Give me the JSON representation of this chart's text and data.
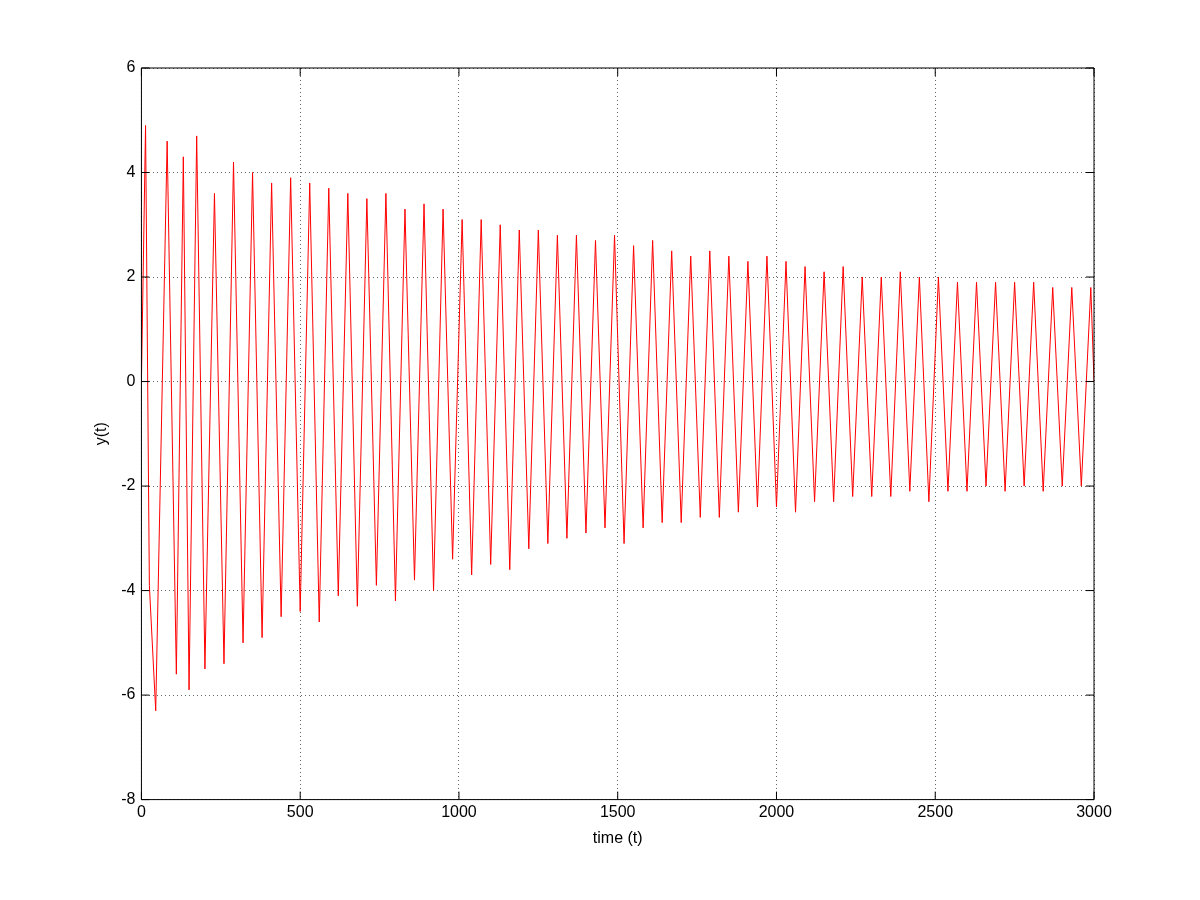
{
  "chart_data": {
    "type": "line",
    "xlabel": "time (t)",
    "ylabel": "y(t)",
    "xlim": [
      0,
      3000
    ],
    "xticks": [
      0,
      500,
      1000,
      1500,
      2000,
      2500,
      3000
    ],
    "ylim": [
      -8,
      6
    ],
    "yticks": [
      -8,
      -6,
      -4,
      -2,
      0,
      2,
      4,
      6
    ],
    "grid": true,
    "marker": "none",
    "line_style": "solid",
    "x": [
      0,
      13,
      25,
      45,
      81,
      110,
      132,
      150,
      174,
      200,
      230,
      260,
      290,
      320,
      350,
      380,
      410,
      440,
      470,
      500,
      530,
      560,
      590,
      620,
      650,
      680,
      710,
      740,
      770,
      800,
      830,
      860,
      890,
      920,
      950,
      980,
      1010,
      1040,
      1070,
      1100,
      1130,
      1160,
      1190,
      1220,
      1250,
      1280,
      1310,
      1340,
      1370,
      1400,
      1430,
      1460,
      1490,
      1520,
      1550,
      1580,
      1610,
      1640,
      1670,
      1700,
      1730,
      1760,
      1790,
      1820,
      1850,
      1880,
      1910,
      1940,
      1970,
      2000,
      2030,
      2060,
      2090,
      2120,
      2150,
      2180,
      2210,
      2240,
      2270,
      2300,
      2330,
      2360,
      2390,
      2420,
      2450,
      2480,
      2510,
      2540,
      2570,
      2600,
      2630,
      2660,
      2690,
      2720,
      2750,
      2780,
      2810,
      2840,
      2870,
      2900,
      2930,
      2960,
      2990,
      3000
    ],
    "series": [
      {
        "color": "#ff0000",
        "values": [
          0,
          4.9,
          -3.9,
          -6.3,
          4.6,
          -5.6,
          4.3,
          -5.9,
          4.7,
          -5.5,
          3.6,
          -5.4,
          4.2,
          -5.0,
          4.0,
          -4.9,
          3.8,
          -4.5,
          3.9,
          -4.4,
          3.8,
          -4.6,
          3.7,
          -4.1,
          3.6,
          -4.3,
          3.5,
          -3.9,
          3.6,
          -4.2,
          3.3,
          -3.8,
          3.4,
          -4.0,
          3.3,
          -3.4,
          3.1,
          -3.7,
          3.1,
          -3.5,
          3.0,
          -3.6,
          2.9,
          -3.2,
          2.9,
          -3.1,
          2.8,
          -3.0,
          2.8,
          -2.9,
          2.7,
          -2.8,
          2.8,
          -3.1,
          2.6,
          -2.8,
          2.7,
          -2.7,
          2.5,
          -2.7,
          2.4,
          -2.6,
          2.5,
          -2.6,
          2.4,
          -2.5,
          2.3,
          -2.4,
          2.4,
          -2.4,
          2.3,
          -2.5,
          2.2,
          -2.3,
          2.1,
          -2.3,
          2.2,
          -2.2,
          2.0,
          -2.2,
          2.0,
          -2.2,
          2.1,
          -2.1,
          2.0,
          -2.3,
          2.0,
          -2.1,
          1.9,
          -2.1,
          1.9,
          -2.0,
          1.9,
          -2.1,
          1.9,
          -2.0,
          1.9,
          -2.1,
          1.8,
          -2.0,
          1.8,
          -2.0,
          1.8,
          0
        ]
      }
    ]
  }
}
